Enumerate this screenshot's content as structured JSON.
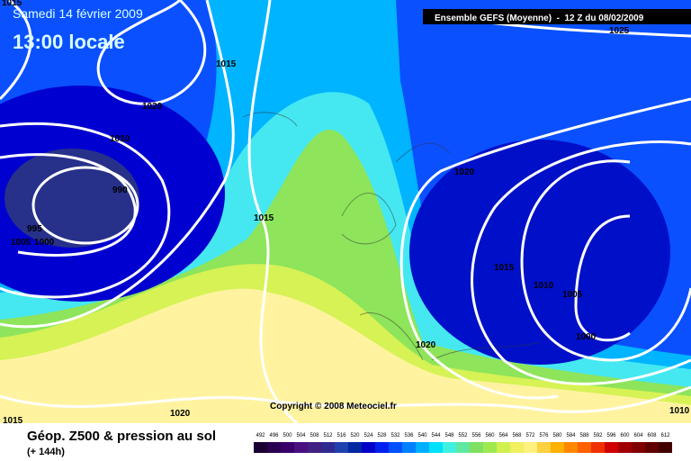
{
  "header": {
    "date": "Samedi 14 février 2009",
    "time": "13:00 locale",
    "run": "Ensemble GEFS (Moyenne)  -  12 Z du 08/02/2009"
  },
  "isobar_labels": [
    "1015",
    "1015",
    "1020",
    "1010",
    "990",
    "995",
    "1005",
    "1000",
    "1015",
    "1020",
    "1015",
    "1010",
    "1005",
    "1000",
    "1020",
    "1025",
    "1020",
    "1015",
    "1010"
  ],
  "copyright": "Copyright © 2008 Meteociel.fr",
  "footer": {
    "title": "Géop. Z500 & pression au sol",
    "lead": "(+ 144h)"
  },
  "legend": {
    "values": [
      492,
      496,
      500,
      504,
      508,
      512,
      516,
      520,
      524,
      528,
      532,
      536,
      540,
      544,
      548,
      552,
      556,
      560,
      564,
      568,
      572,
      576,
      580,
      584,
      588,
      592,
      596,
      600,
      604,
      608,
      612
    ],
    "colors": [
      "#1a0033",
      "#2a0050",
      "#3a006a",
      "#4a1080",
      "#402080",
      "#302a90",
      "#2040b0",
      "#0028a0",
      "#0000c8",
      "#0020f0",
      "#0050ff",
      "#0080ff",
      "#00b0ff",
      "#00e0ff",
      "#40f0e0",
      "#60e8a0",
      "#80e060",
      "#a0e850",
      "#d0f050",
      "#f0f060",
      "#fff080",
      "#ffd040",
      "#ffb000",
      "#ff8800",
      "#ff6000",
      "#f03000",
      "#d00000",
      "#a00000",
      "#800000",
      "#600000",
      "#400000"
    ]
  }
}
